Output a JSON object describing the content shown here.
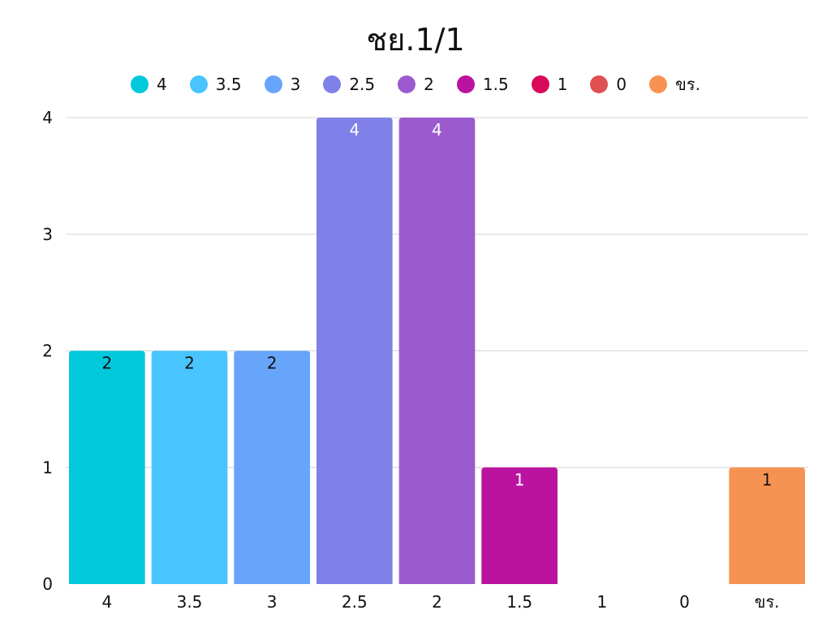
{
  "chart_data": {
    "type": "bar",
    "title": "ชย.1/1",
    "categories": [
      "4",
      "3.5",
      "3",
      "2.5",
      "2",
      "1.5",
      "1",
      "0",
      "ขร."
    ],
    "values": [
      2,
      2,
      2,
      4,
      4,
      1,
      0,
      0,
      1
    ],
    "colors": [
      "#00c9dc",
      "#48c4ff",
      "#67a5fb",
      "#7f80e8",
      "#9b5bcf",
      "#bb129f",
      "#d90a5c",
      "#e05050",
      "#f79352"
    ],
    "label_colors": [
      "#111111",
      "#111111",
      "#111111",
      "#ffffff",
      "#ffffff",
      "#ffffff",
      "#111111",
      "#111111",
      "#111111"
    ],
    "legend": [
      "4",
      "3.5",
      "3",
      "2.5",
      "2",
      "1.5",
      "1",
      "0",
      "ขร."
    ],
    "legend_position": "top",
    "y_ticks": [
      0,
      1,
      2,
      3,
      4
    ],
    "ylim": [
      0,
      4
    ],
    "xlabel": "",
    "ylabel": "",
    "grid": true
  }
}
